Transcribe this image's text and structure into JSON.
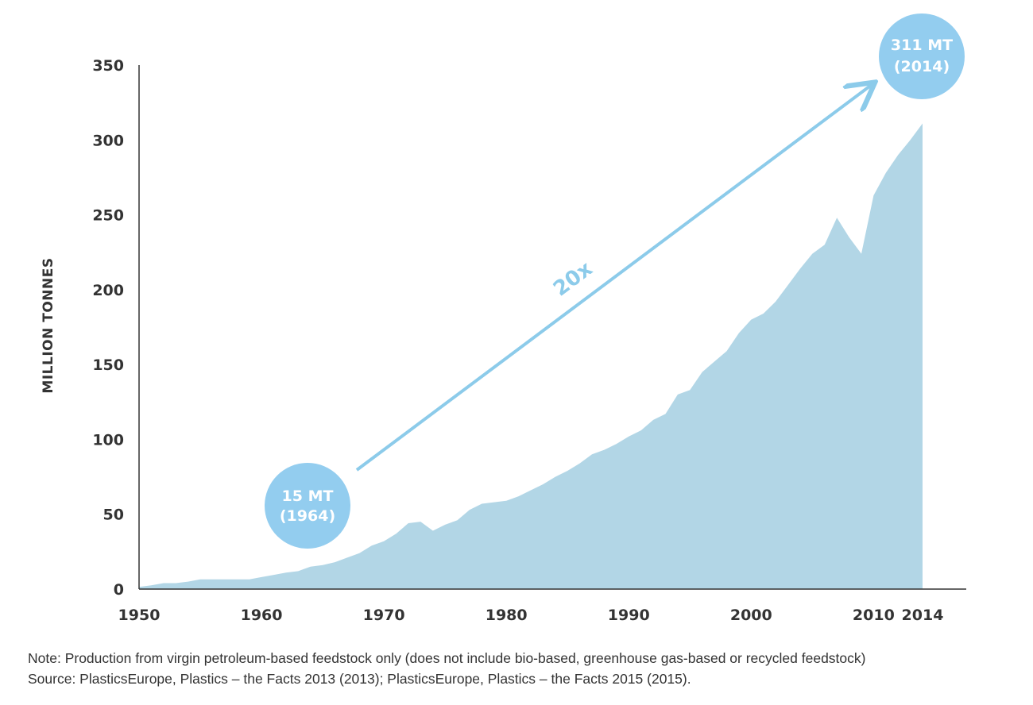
{
  "chart_data": {
    "type": "area",
    "ylabel": "MILLION TONNES",
    "xlabel": "",
    "ylim": [
      0,
      350
    ],
    "xlim": [
      1950,
      2014
    ],
    "y_ticks": [
      "0",
      "50",
      "100",
      "150",
      "200",
      "250",
      "300",
      "350"
    ],
    "x_ticks": [
      {
        "value": 1950,
        "label": "1950"
      },
      {
        "value": 1960,
        "label": "1960"
      },
      {
        "value": 1970,
        "label": "1970"
      },
      {
        "value": 1980,
        "label": "1980"
      },
      {
        "value": 1990,
        "label": "1990"
      },
      {
        "value": 2000,
        "label": "2000"
      },
      {
        "value": 2010,
        "label": "2010"
      },
      {
        "value": 2014,
        "label": "2014"
      }
    ],
    "series": [
      {
        "x": [
          1950,
          1951,
          1952,
          1953,
          1954,
          1955,
          1956,
          1957,
          1958,
          1959,
          1960,
          1961,
          1962,
          1963,
          1964,
          1965,
          1966,
          1967,
          1968,
          1969,
          1970,
          1971,
          1972,
          1973,
          1974,
          1975,
          1976,
          1977,
          1978,
          1979,
          1980,
          1981,
          1982,
          1983,
          1984,
          1985,
          1986,
          1987,
          1988,
          1989,
          1990,
          1991,
          1992,
          1993,
          1994,
          1995,
          1996,
          1997,
          1998,
          1999,
          2000,
          2001,
          2002,
          2003,
          2004,
          2005,
          2006,
          2007,
          2008,
          2009,
          2010,
          2011,
          2012,
          2013,
          2014
        ],
        "values": [
          1.5,
          2.5,
          4,
          4,
          5,
          6.5,
          6.5,
          6.5,
          6.5,
          6.5,
          8,
          9.5,
          11,
          12,
          15,
          16,
          18,
          21,
          24,
          29,
          32,
          37,
          44,
          45,
          39,
          43,
          46,
          53,
          57,
          58,
          59,
          62,
          66,
          70,
          75,
          79,
          84,
          90,
          93,
          97,
          102,
          106,
          113,
          117,
          130,
          133,
          145,
          152,
          159,
          171,
          180,
          184,
          192,
          203,
          214,
          224,
          230,
          248,
          235,
          224,
          263,
          278,
          290,
          300,
          311
        ]
      }
    ],
    "annotations": {
      "start_bubble": {
        "line1": "15 MT",
        "line2": "(1964)"
      },
      "end_bubble": {
        "line1": "311 MT",
        "line2": "(2014)"
      },
      "growth_label": "20x"
    },
    "colors": {
      "area": "#b2d6e6",
      "accent": "#8ccbea",
      "bubble": "#93cdef",
      "axis": "#333333"
    },
    "grid": false,
    "legend": "none"
  },
  "footnotes": {
    "note": "Note: Production from virgin petroleum-based feedstock only (does not include bio-based, greenhouse gas-based or recycled feedstock)",
    "source": "Source: PlasticsEurope, Plastics – the Facts 2013 (2013); PlasticsEurope, Plastics – the Facts 2015 (2015)."
  }
}
